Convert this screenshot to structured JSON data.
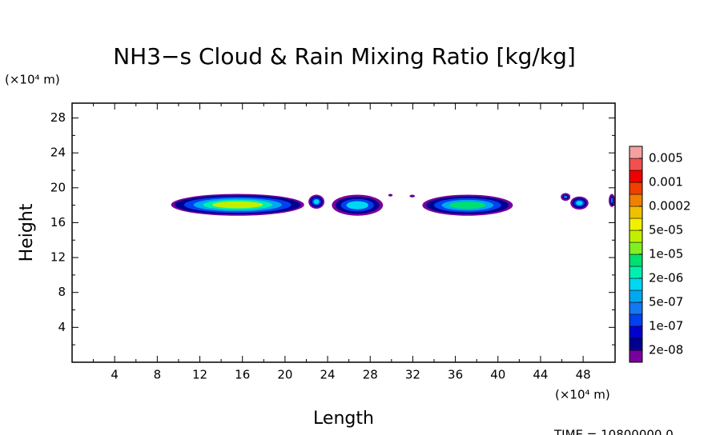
{
  "chart_data": {
    "type": "contour",
    "title": "NH3−s Cloud & Rain Mixing Ratio [kg/kg]",
    "x_label": "Length",
    "y_label": "Height",
    "x_unit": "(×10⁴ m)",
    "y_unit": "(×10⁴ m)",
    "footer": "TIME = 10800000.0",
    "xlim": [
      0,
      51
    ],
    "ylim": [
      0,
      29.7
    ],
    "xticks": [
      4,
      8,
      12,
      16,
      20,
      24,
      28,
      32,
      36,
      40,
      44,
      48
    ],
    "yticks": [
      4,
      8,
      12,
      16,
      20,
      24,
      28
    ],
    "colorbar": {
      "colors": [
        "#7a009e",
        "#000090",
        "#0000d0",
        "#0040f0",
        "#1478f0",
        "#00a8f0",
        "#00d8f0",
        "#00f0b0",
        "#00e070",
        "#80f020",
        "#c0f000",
        "#f0f000",
        "#f0c000",
        "#f08000",
        "#f04000",
        "#f00000",
        "#f05050",
        "#f4a0a0"
      ],
      "levels": [
        {
          "value": 2e-08,
          "label": "2e-08"
        },
        {
          "value": 1e-07,
          "label": "1e-07"
        },
        {
          "value": 5e-07,
          "label": "5e-07"
        },
        {
          "value": 2e-06,
          "label": "2e-06"
        },
        {
          "value": 1e-05,
          "label": "1e-05"
        },
        {
          "value": 5e-05,
          "label": "5e-05"
        },
        0.0002,
        0.001,
        0.005
      ]
    },
    "regions": [
      {
        "x": [
          9.3,
          21.8
        ],
        "y": [
          16.8,
          19.3
        ],
        "max": 1e-05
      },
      {
        "x": [
          22.2,
          23.7
        ],
        "y": [
          17.6,
          19.2
        ],
        "max": 5e-07
      },
      {
        "x": [
          24.4,
          29.2
        ],
        "y": [
          16.8,
          19.2
        ],
        "max": 5e-07
      },
      {
        "x": [
          29.7,
          30.1
        ],
        "y": [
          19.0,
          19.3
        ],
        "max": 2e-08
      },
      {
        "x": [
          31.7,
          32.2
        ],
        "y": [
          18.9,
          19.2
        ],
        "max": 2e-08
      },
      {
        "x": [
          32.9,
          41.4
        ],
        "y": [
          16.8,
          19.2
        ],
        "max": 2e-06
      },
      {
        "x": [
          45.9,
          46.8
        ],
        "y": [
          18.5,
          19.4
        ],
        "max": 1e-07
      },
      {
        "x": [
          46.8,
          48.5
        ],
        "y": [
          17.5,
          19.0
        ],
        "max": 5e-07
      },
      {
        "x": [
          50.4,
          51.0
        ],
        "y": [
          17.8,
          19.3
        ],
        "max": 1e-07
      }
    ]
  }
}
